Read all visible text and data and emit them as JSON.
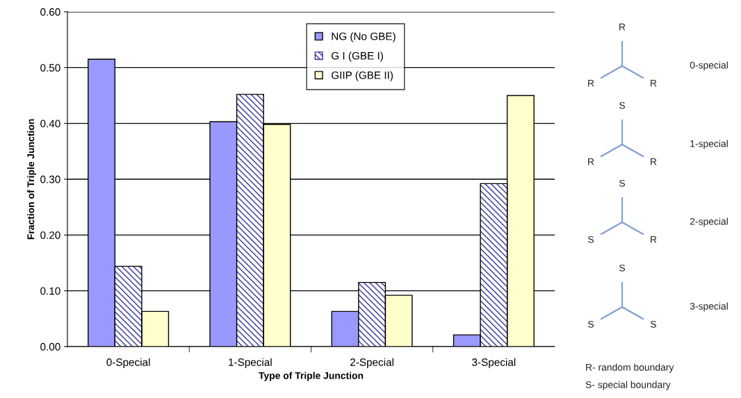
{
  "chart_data": {
    "type": "bar",
    "xlabel": "Type of Triple Junction",
    "ylabel": "Fraction of Triple Junction",
    "categories": [
      "0-Special",
      "1-Special",
      "2-Special",
      "3-Special"
    ],
    "series": [
      {
        "name": "NG (No GBE)",
        "color": "#9999ff",
        "values": [
          0.515,
          0.403,
          0.063,
          0.021
        ]
      },
      {
        "name": "G I (GBE I)",
        "color": "#333399",
        "values": [
          0.144,
          0.452,
          0.115,
          0.292
        ]
      },
      {
        "name": "GIIP (GBE II)",
        "color": "#ffffcc",
        "values": [
          0.063,
          0.398,
          0.092,
          0.45
        ]
      }
    ],
    "ylim": [
      0,
      0.6
    ],
    "yticks": [
      {
        "value": 0,
        "label": "0.00"
      },
      {
        "value": 0.1,
        "label": "0.10"
      },
      {
        "value": 0.2,
        "label": "0.20"
      },
      {
        "value": 0.3,
        "label": "0.30"
      },
      {
        "value": 0.4,
        "label": "0.40"
      },
      {
        "value": 0.5,
        "label": "0.50"
      },
      {
        "value": 0.6,
        "label": "0.60"
      }
    ],
    "grid": "y",
    "legend": "top",
    "annotations": [
      "R",
      "R",
      "R",
      "0-special",
      "S",
      "R",
      "R",
      "1-special",
      "S",
      "S",
      "R",
      "2-special",
      "S",
      "S",
      "S",
      "3-special",
      "R- random boundary",
      "S- special boundary"
    ]
  }
}
